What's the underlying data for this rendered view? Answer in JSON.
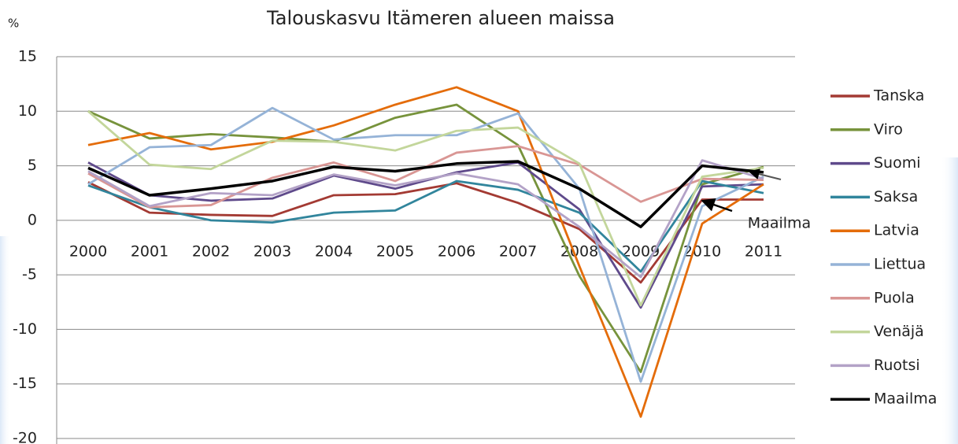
{
  "chart_data": {
    "type": "line",
    "title": "Talouskasvu Itämeren alueen maissa",
    "y_label": "%",
    "annotation": "Maailma",
    "categories": [
      "2000",
      "2001",
      "2002",
      "2003",
      "2004",
      "2005",
      "2006",
      "2007",
      "2008",
      "2009",
      "2010",
      "2011"
    ],
    "ylim": [
      -20,
      15
    ],
    "yticks": [
      -20,
      -15,
      -10,
      -5,
      0,
      5,
      10,
      15
    ],
    "grid": true,
    "legend": "right",
    "series": [
      {
        "name": "Tanska",
        "color": "#a33a33",
        "values": [
          3.5,
          0.7,
          0.5,
          0.4,
          2.3,
          2.4,
          3.4,
          1.6,
          -0.8,
          -5.7,
          1.9,
          1.9
        ]
      },
      {
        "name": "Viro",
        "color": "#77933c",
        "values": [
          10.0,
          7.5,
          7.9,
          7.6,
          7.2,
          9.4,
          10.6,
          6.9,
          -5.1,
          -13.9,
          3.3,
          4.9
        ]
      },
      {
        "name": "Suomi",
        "color": "#5f4a8b",
        "values": [
          5.3,
          2.3,
          1.8,
          2.0,
          4.1,
          2.9,
          4.4,
          5.3,
          1.0,
          -8.0,
          3.1,
          3.3
        ]
      },
      {
        "name": "Saksa",
        "color": "#31859c",
        "values": [
          3.2,
          1.2,
          0.0,
          -0.2,
          0.7,
          0.9,
          3.6,
          2.8,
          0.7,
          -4.7,
          3.6,
          2.5
        ]
      },
      {
        "name": "Latvia",
        "color": "#e46c0a",
        "values": [
          6.9,
          8.0,
          6.5,
          7.2,
          8.7,
          10.6,
          12.2,
          10.0,
          -4.2,
          -18.0,
          -0.3,
          3.3
        ]
      },
      {
        "name": "Liettua",
        "color": "#95b3d7",
        "values": [
          3.3,
          6.7,
          6.9,
          10.3,
          7.4,
          7.8,
          7.8,
          9.8,
          2.9,
          -14.8,
          1.3,
          4.0
        ]
      },
      {
        "name": "Puola",
        "color": "#d99694",
        "values": [
          4.3,
          1.2,
          1.4,
          3.9,
          5.3,
          3.6,
          6.2,
          6.8,
          5.1,
          1.7,
          3.8,
          3.7
        ]
      },
      {
        "name": "Venäjä",
        "color": "#c3d69b",
        "values": [
          10.0,
          5.1,
          4.7,
          7.3,
          7.2,
          6.4,
          8.2,
          8.5,
          5.2,
          -7.8,
          4.0,
          4.8
        ]
      },
      {
        "name": "Ruotsi",
        "color": "#b3a2c7",
        "values": [
          4.5,
          1.3,
          2.5,
          2.3,
          4.2,
          3.2,
          4.3,
          3.3,
          -0.6,
          -5.2,
          5.5,
          3.8
        ]
      },
      {
        "name": "Maailma",
        "color": "#000000",
        "values": [
          4.8,
          2.3,
          2.9,
          3.6,
          4.9,
          4.5,
          5.2,
          5.4,
          2.9,
          -0.6,
          5.0,
          4.4
        ]
      }
    ]
  }
}
